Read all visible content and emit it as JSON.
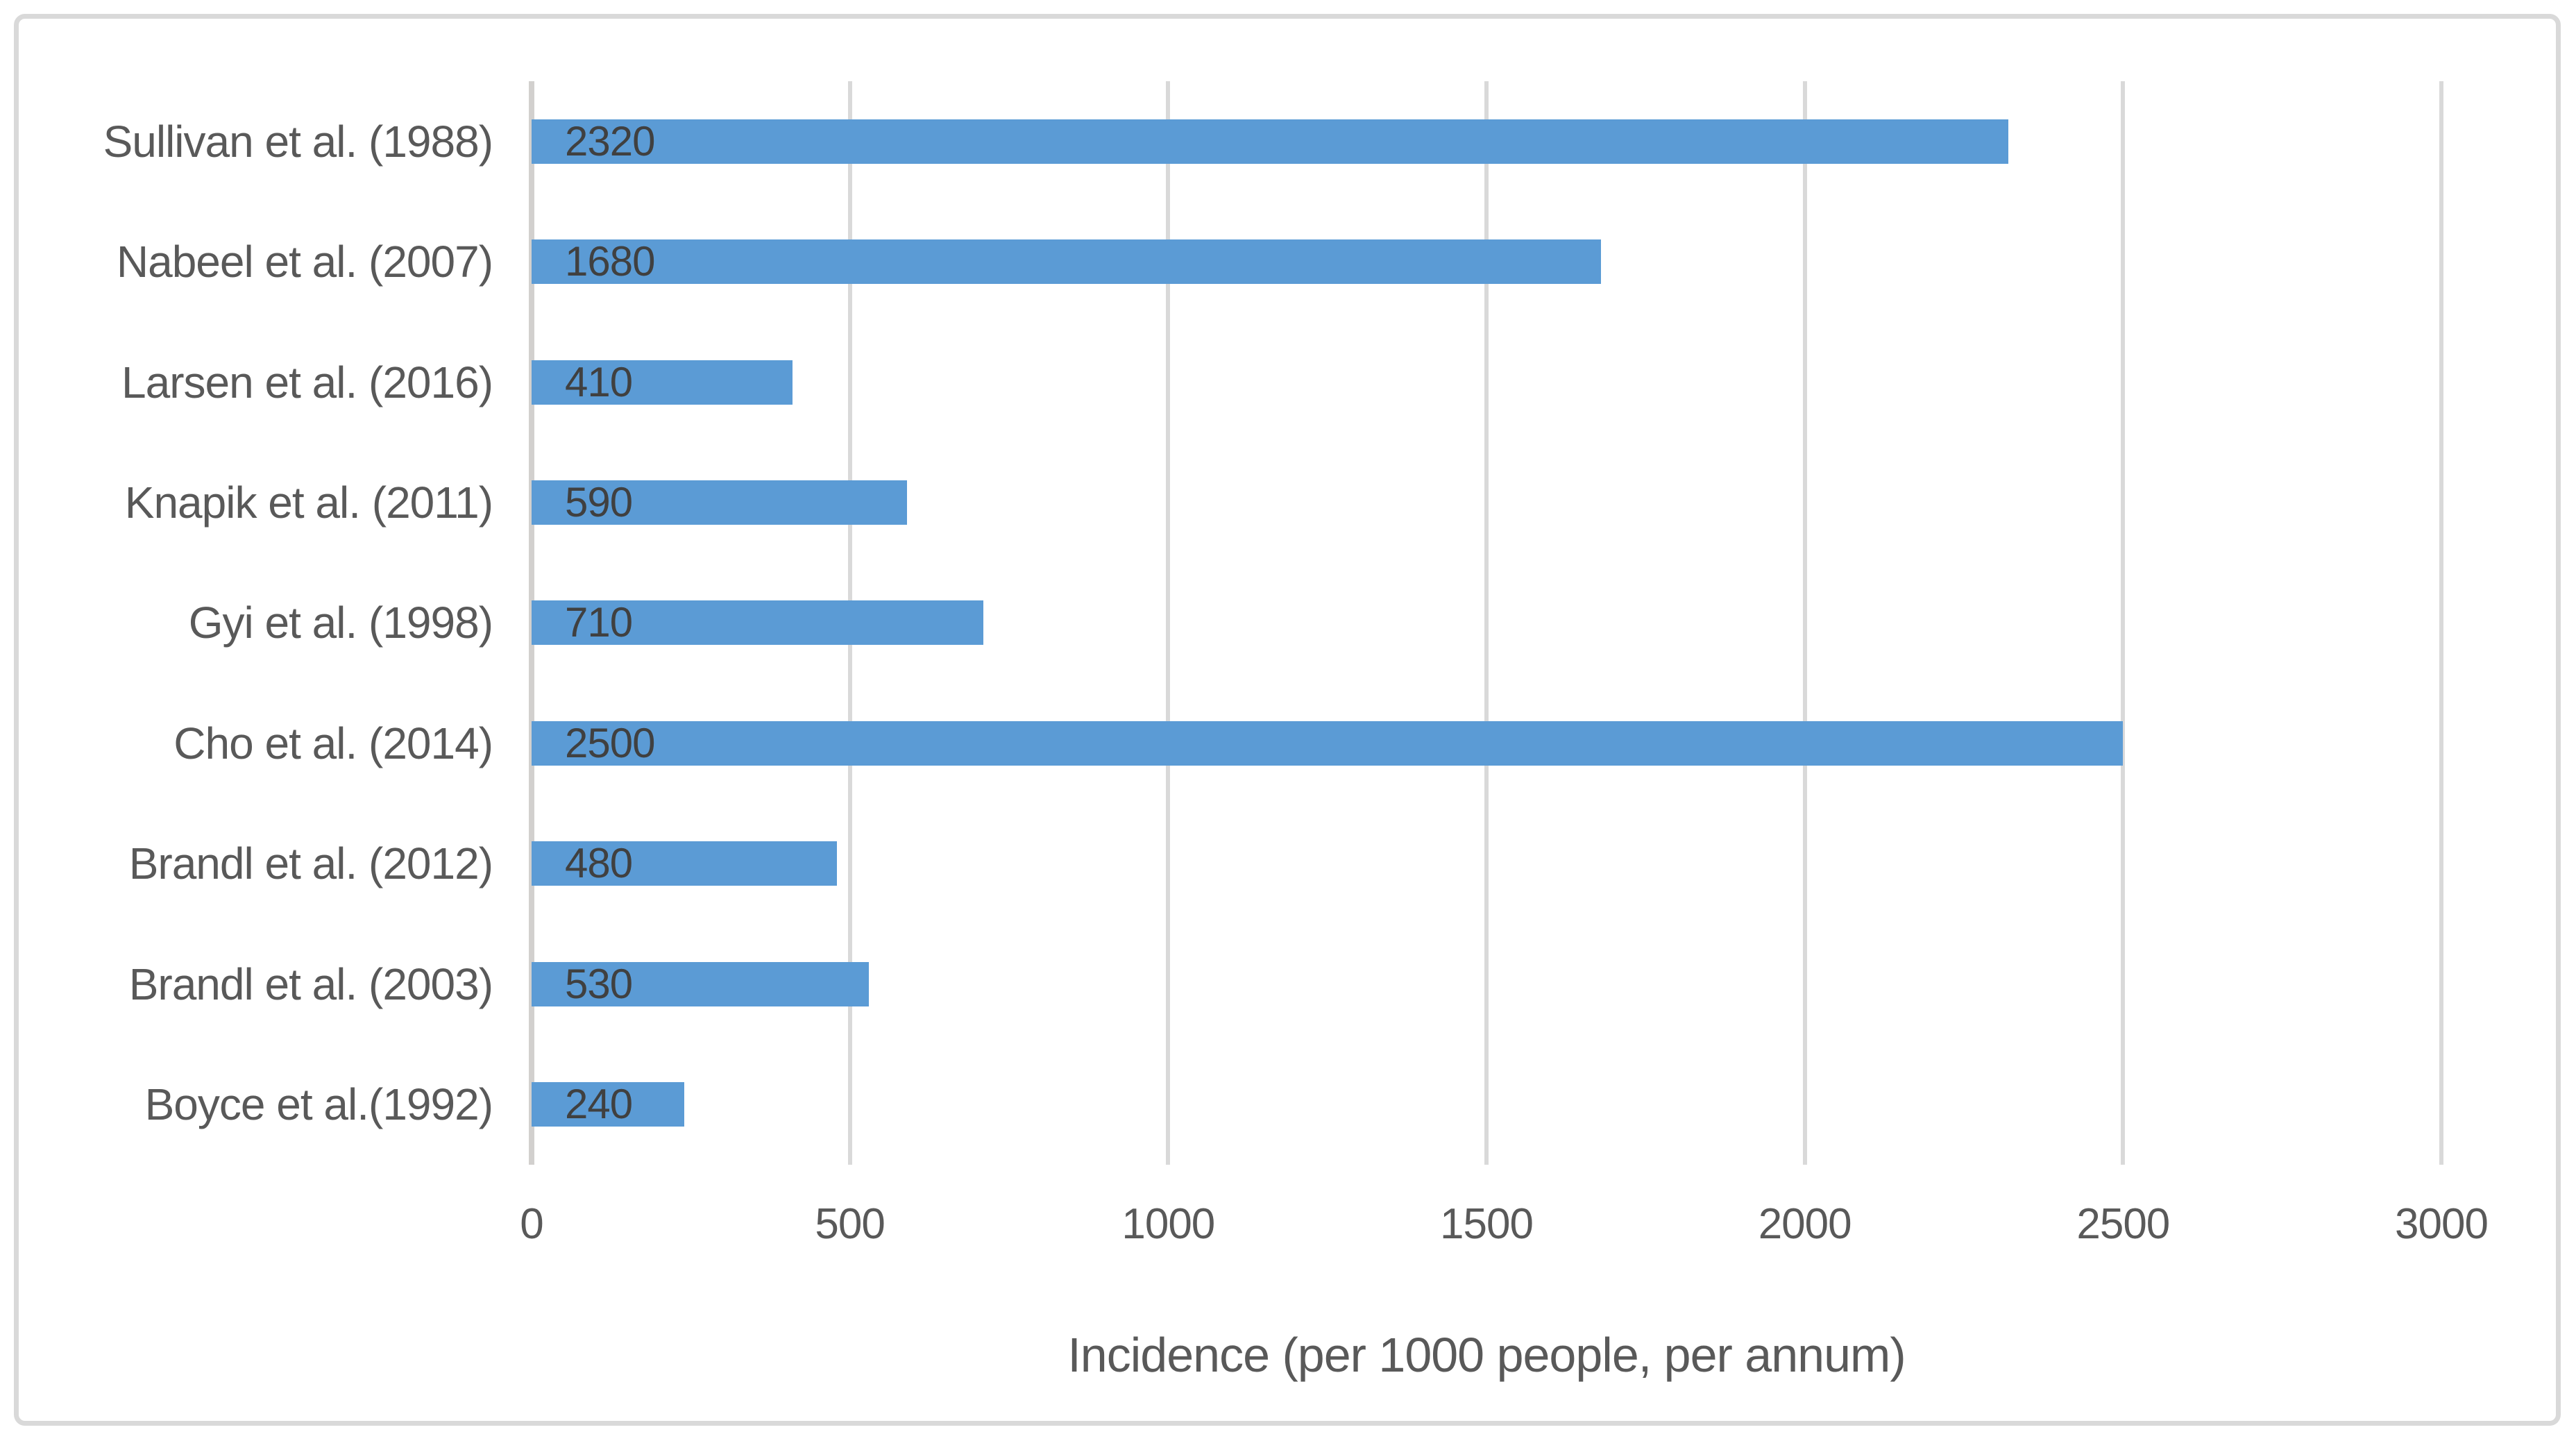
{
  "chart_data": {
    "type": "bar",
    "orientation": "horizontal",
    "title": "",
    "xlabel": "Incidence (per 1000 people, per annum)",
    "ylabel": "",
    "categories": [
      "Sullivan et al. (1988)",
      "Nabeel et al. (2007)",
      "Larsen et al. (2016)",
      "Knapik et al. (2011)",
      "Gyi et al. (1998)",
      "Cho et al. (2014)",
      "Brandl et al. (2012)",
      "Brandl et al. (2003)",
      "Boyce et al.(1992)"
    ],
    "values": [
      2320,
      1680,
      410,
      590,
      710,
      2500,
      480,
      530,
      240
    ],
    "data_labels": [
      "2320",
      "1680",
      "410",
      "590",
      "710",
      "2500",
      "480",
      "530",
      "240"
    ],
    "xlim": [
      0,
      3000
    ],
    "x_ticks": [
      "0",
      "500",
      "1000",
      "1500",
      "2000",
      "2500",
      "3000"
    ],
    "x_tick_values": [
      0,
      500,
      1000,
      1500,
      2000,
      2500,
      3000
    ],
    "grid": "vertical",
    "legend": "none",
    "colors": {
      "bar": "#5B9BD5",
      "gridline": "#D9D9D9",
      "axis_line": "#D2D0CE",
      "frame_border": "#D9D9D9",
      "category_text": "#595959",
      "tick_text": "#595959",
      "value_text": "#404040",
      "title_text": "#595959",
      "background": "#FFFFFF"
    }
  }
}
